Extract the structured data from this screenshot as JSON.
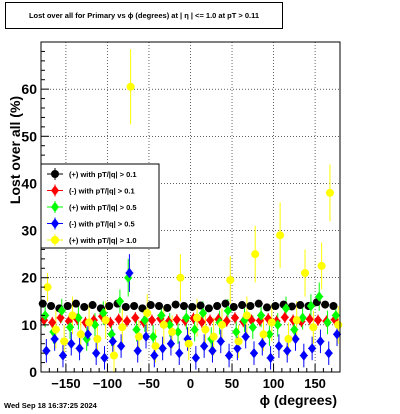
{
  "title": "Lost over all for Primary vs ϕ (degrees) at |  η | <= 1.0 at pT > 0.11",
  "timestamp": "Wed Sep 18 16:37:25 2024",
  "chart_data": {
    "type": "scatter",
    "xlabel": "ϕ (degrees)",
    "ylabel": "Lost over all (%)",
    "xlim": [
      -180,
      180
    ],
    "ylim": [
      0,
      70
    ],
    "x_ticks": [
      -150,
      -100,
      -50,
      0,
      50,
      100,
      150
    ],
    "x_tick_labels": [
      "−150",
      "−100",
      "−50",
      "0",
      "50",
      "100",
      "150"
    ],
    "y_ticks": [
      0,
      10,
      20,
      30,
      40,
      50,
      60
    ],
    "y_tick_labels": [
      "0",
      "10",
      "20",
      "30",
      "40",
      "50",
      "60"
    ],
    "grid": true,
    "legend_position": "left-middle",
    "series": [
      {
        "name": "(+) with pT/|q| > 0.1",
        "color": "#000000",
        "marker": "circle",
        "x": [
          -175,
          -165,
          -155,
          -145,
          -135,
          -125,
          -115,
          -105,
          -95,
          -85,
          -75,
          -65,
          -55,
          -45,
          -35,
          -25,
          -15,
          -5,
          5,
          15,
          25,
          35,
          45,
          55,
          65,
          75,
          85,
          95,
          105,
          115,
          125,
          135,
          145,
          155,
          165,
          175
        ],
        "y": [
          14.5,
          14.0,
          13.5,
          14.0,
          14.5,
          13.8,
          14.2,
          13.5,
          14.0,
          14.5,
          13.8,
          14.0,
          13.5,
          14.2,
          14.0,
          13.6,
          14.3,
          14.0,
          13.8,
          14.1,
          13.5,
          14.0,
          14.5,
          13.8,
          14.2,
          14.0,
          14.5,
          13.7,
          14.0,
          14.3,
          13.9,
          14.2,
          14.0,
          14.8,
          14.3,
          14.0
        ],
        "err": [
          0.8,
          0.8,
          0.8,
          0.8,
          0.8,
          0.8,
          0.8,
          0.8,
          0.8,
          0.8,
          0.8,
          0.8,
          0.8,
          0.8,
          0.8,
          0.8,
          0.8,
          0.8,
          0.8,
          0.8,
          0.8,
          0.8,
          0.8,
          0.8,
          0.8,
          0.8,
          0.8,
          0.8,
          0.8,
          0.8,
          0.8,
          0.8,
          0.8,
          0.8,
          0.8,
          0.8
        ]
      },
      {
        "name": "(-) with pT/|q| > 0.1",
        "color": "#ff0000",
        "marker": "diamond",
        "x": [
          -175,
          -165,
          -155,
          -145,
          -135,
          -125,
          -115,
          -105,
          -95,
          -85,
          -75,
          -65,
          -55,
          -45,
          -35,
          -25,
          -15,
          -5,
          5,
          15,
          25,
          35,
          45,
          55,
          65,
          75,
          85,
          95,
          105,
          115,
          125,
          135,
          145,
          155,
          165,
          175
        ],
        "y": [
          11.0,
          10.5,
          11.5,
          10.8,
          11.2,
          10.5,
          11.0,
          11.8,
          10.5,
          11.2,
          10.8,
          11.5,
          10.6,
          11.0,
          11.3,
          10.7,
          11.1,
          10.9,
          11.4,
          10.6,
          11.0,
          11.2,
          10.8,
          11.5,
          10.7,
          11.0,
          10.9,
          11.3,
          10.8,
          11.6,
          11.0,
          10.7,
          11.2,
          11.0,
          10.8,
          11.1
        ],
        "err": [
          1.2,
          1.2,
          1.2,
          1.2,
          1.2,
          1.2,
          1.2,
          1.2,
          1.2,
          1.2,
          1.2,
          1.2,
          1.2,
          1.2,
          1.2,
          1.2,
          1.2,
          1.2,
          1.2,
          1.2,
          1.2,
          1.2,
          1.2,
          1.2,
          1.2,
          1.2,
          1.2,
          1.2,
          1.2,
          1.2,
          1.2,
          1.2,
          1.2,
          1.2,
          1.2,
          1.2
        ]
      },
      {
        "name": "(+) with pT/|q| > 0.5",
        "color": "#00ff00",
        "marker": "diamond",
        "x": [
          -175,
          -165,
          -155,
          -145,
          -135,
          -125,
          -115,
          -105,
          -95,
          -85,
          -75,
          -65,
          -55,
          -45,
          -35,
          -25,
          -15,
          -5,
          5,
          15,
          25,
          35,
          45,
          55,
          65,
          75,
          85,
          95,
          105,
          115,
          125,
          135,
          145,
          155,
          165,
          175
        ],
        "y": [
          12.0,
          8.5,
          13.0,
          9.5,
          11.5,
          7.0,
          10.0,
          12.5,
          8.0,
          15.0,
          20.0,
          9.0,
          11.0,
          7.5,
          12.0,
          10.0,
          8.5,
          11.5,
          9.0,
          12.5,
          7.0,
          10.5,
          13.0,
          8.5,
          11.0,
          9.5,
          12.0,
          8.0,
          10.0,
          13.5,
          9.0,
          11.5,
          14.0,
          16.0,
          10.5,
          12.0
        ],
        "err": [
          2.5,
          2.5,
          2.5,
          2.5,
          2.5,
          2.5,
          2.5,
          2.5,
          2.5,
          2.5,
          4.0,
          2.5,
          2.5,
          2.5,
          2.5,
          2.5,
          2.5,
          2.5,
          2.5,
          2.5,
          2.5,
          2.5,
          2.5,
          2.5,
          2.5,
          2.5,
          2.5,
          2.5,
          2.5,
          2.5,
          2.5,
          2.5,
          2.5,
          3.0,
          2.5,
          2.5
        ]
      },
      {
        "name": "(-) with pT/|q| > 0.5",
        "color": "#0000ff",
        "marker": "diamond",
        "x": [
          -175,
          -165,
          -155,
          -145,
          -135,
          -125,
          -115,
          -105,
          -95,
          -85,
          -75,
          -65,
          -55,
          -45,
          -35,
          -25,
          -15,
          -5,
          5,
          15,
          25,
          35,
          45,
          55,
          65,
          75,
          85,
          95,
          105,
          115,
          125,
          135,
          145,
          155,
          165,
          175
        ],
        "y": [
          4.5,
          7.0,
          3.5,
          6.0,
          5.0,
          8.0,
          4.0,
          3.0,
          6.5,
          5.5,
          21.0,
          4.5,
          7.5,
          3.5,
          5.0,
          6.0,
          4.0,
          7.0,
          3.0,
          5.5,
          4.5,
          6.5,
          3.5,
          5.0,
          7.5,
          4.0,
          6.0,
          3.0,
          5.5,
          4.5,
          7.0,
          3.5,
          5.0,
          6.5,
          4.0,
          8.0
        ],
        "err": [
          2.5,
          2.5,
          2.5,
          2.5,
          2.5,
          2.5,
          2.5,
          2.5,
          2.5,
          2.5,
          4.0,
          2.5,
          2.5,
          2.5,
          2.5,
          2.5,
          2.5,
          2.5,
          2.5,
          2.5,
          2.5,
          2.5,
          2.5,
          2.5,
          2.5,
          2.5,
          2.5,
          2.5,
          2.5,
          2.5,
          2.5,
          2.5,
          2.5,
          2.5,
          2.5,
          2.5
        ]
      },
      {
        "name": "(+) with pT/|q| > 1.0",
        "color": "#ffff00",
        "marker": "circle",
        "x": [
          -175,
          -165,
          -155,
          -145,
          -135,
          -125,
          -115,
          -105,
          -95,
          -85,
          -75,
          -65,
          -55,
          -45,
          -35,
          -25,
          -15,
          -5,
          5,
          15,
          25,
          35,
          45,
          55,
          65,
          75,
          85,
          95,
          105,
          115,
          125,
          135,
          145,
          155,
          165,
          175
        ],
        "y": [
          18.0,
          9.0,
          6.5,
          12.0,
          8.0,
          10.5,
          7.0,
          11.0,
          3.5,
          9.5,
          60.5,
          7.5,
          12.5,
          5.5,
          10.0,
          8.5,
          20.0,
          6.0,
          11.5,
          9.0,
          7.5,
          10.0,
          19.5,
          6.5,
          12.0,
          25.0,
          8.0,
          10.5,
          29.0,
          7.0,
          11.0,
          21.0,
          9.5,
          22.5,
          38.0,
          10.0
        ],
        "err": [
          3.0,
          4.0,
          3.5,
          4.0,
          3.5,
          4.0,
          3.5,
          4.0,
          3.5,
          4.0,
          8.0,
          3.5,
          4.0,
          3.5,
          4.0,
          3.5,
          5.0,
          3.5,
          4.0,
          3.5,
          4.0,
          3.5,
          5.0,
          3.5,
          4.0,
          6.0,
          3.5,
          4.0,
          7.0,
          3.5,
          4.0,
          5.0,
          3.5,
          5.0,
          6.0,
          4.0
        ]
      }
    ]
  }
}
